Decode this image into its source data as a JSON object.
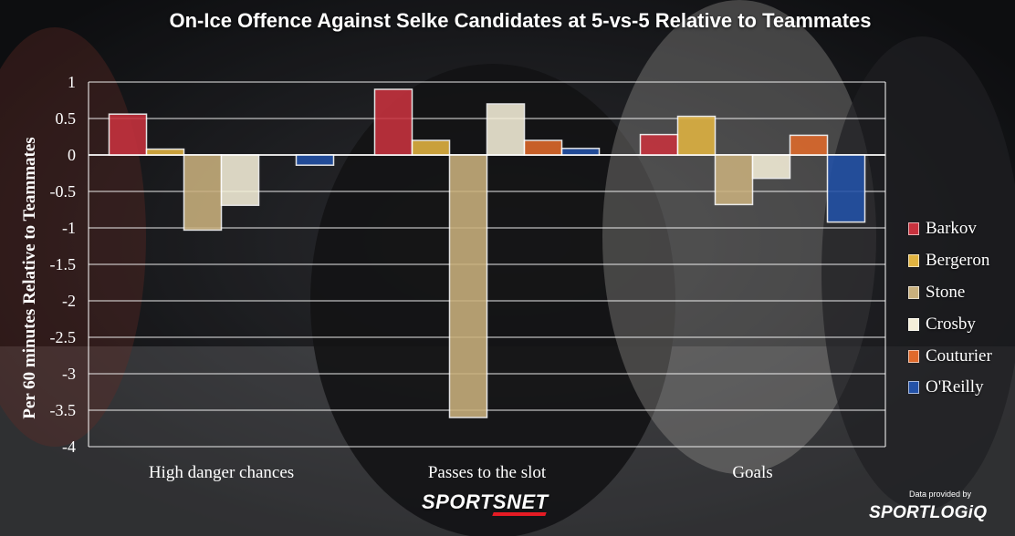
{
  "chart_data": {
    "type": "bar",
    "title": "On-Ice Offence Against Selke Candidates at 5-vs-5 Relative to Teammates",
    "ylabel": "Per 60 minutes Relative to Teammates",
    "xlabel": "",
    "categories": [
      "High danger chances",
      "Passes to the slot",
      "Goals"
    ],
    "series": [
      {
        "name": "Barkov",
        "color": "#c8323e",
        "values": [
          0.56,
          0.9,
          0.28
        ]
      },
      {
        "name": "Bergeron",
        "color": "#e2b441",
        "values": [
          0.08,
          0.2,
          0.53
        ]
      },
      {
        "name": "Stone",
        "color": "#c9b07d",
        "values": [
          -1.03,
          -3.6,
          -0.68
        ]
      },
      {
        "name": "Crosby",
        "color": "#f5efd9",
        "values": [
          -0.69,
          0.7,
          -0.32
        ]
      },
      {
        "name": "Couturier",
        "color": "#e06a2b",
        "values": [
          0.0,
          0.2,
          0.27
        ]
      },
      {
        "name": "O'Reilly",
        "color": "#2352a8",
        "values": [
          -0.14,
          0.09,
          -0.92
        ]
      }
    ],
    "ylim": [
      -4,
      1
    ],
    "yticks": [
      "1",
      "0.5",
      "0",
      "-0.5",
      "-1",
      "-1.5",
      "-2",
      "-2.5",
      "-3",
      "-3.5",
      "-4"
    ],
    "grid": true,
    "legend_position": "right"
  },
  "footer": {
    "brand": "SPORTSNET",
    "credit_text": "Data provided by",
    "credit_brand": "SPORTLOGiQ"
  }
}
